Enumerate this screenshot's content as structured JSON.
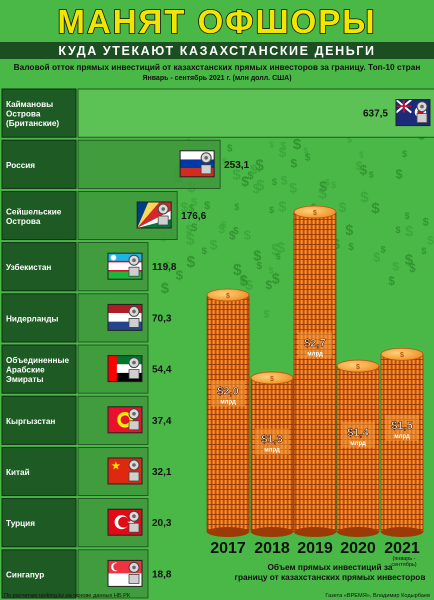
{
  "header": {
    "title": "МАНЯТ ОФШОРЫ",
    "subtitle": "КУДА УТЕКАЮТ КАЗАХСТАНСКИЕ ДЕНЬГИ",
    "chart_title": "Валовой отток прямых инвестиций от казахстанских прямых инвесторов за границу. Топ-10 стран",
    "period": "Январь - сентябрь 2021 г. (млн долл. США)"
  },
  "footer": {
    "source": "По расчетам ranking.kz на основе данных НБ РК",
    "credit": "Газета «ВРЕМЯ», Владимир Кодырбаев"
  },
  "colors": {
    "background": "#4ab847",
    "title_yellow": "#f2e500",
    "coin_orange": "#f07d1c",
    "row_bg": "#1e5a24"
  },
  "chart_data": [
    {
      "type": "bar",
      "orientation": "horizontal",
      "title": "Валовой отток прямых инвестиций от казахстанских прямых инвесторов за границу. Топ-10 стран",
      "subtitle": "Январь - сентябрь 2021 г. (млн долл. США)",
      "rows": [
        {
          "label_lines": [
            "Каймановы",
            "Острова",
            "(Британские)"
          ],
          "value": 637.5,
          "value_label": "637,5",
          "flag": "cayman-flag"
        },
        {
          "label_lines": [
            "Россия"
          ],
          "value": 253.1,
          "value_label": "253,1",
          "flag": "russia-flag"
        },
        {
          "label_lines": [
            "Сейшельские",
            "Острова"
          ],
          "value": 176.6,
          "value_label": "176,6",
          "flag": "seychelles-flag"
        },
        {
          "label_lines": [
            "Узбекистан"
          ],
          "value": 119.8,
          "value_label": "119,8",
          "flag": "uzbekistan-flag"
        },
        {
          "label_lines": [
            "Нидерланды"
          ],
          "value": 70.3,
          "value_label": "70,3",
          "flag": "netherlands-flag"
        },
        {
          "label_lines": [
            "Объединенные",
            "Арабские",
            "Эмираты"
          ],
          "value": 54.4,
          "value_label": "54,4",
          "flag": "uae-flag"
        },
        {
          "label_lines": [
            "Кыргызстан"
          ],
          "value": 37.4,
          "value_label": "37,4",
          "flag": "kyrgyzstan-flag"
        },
        {
          "label_lines": [
            "Китай"
          ],
          "value": 32.1,
          "value_label": "32,1",
          "flag": "china-flag"
        },
        {
          "label_lines": [
            "Турция"
          ],
          "value": 20.3,
          "value_label": "20,3",
          "flag": "turkey-flag"
        },
        {
          "label_lines": [
            "Сингапур"
          ],
          "value": 18.8,
          "value_label": "18,8",
          "flag": "singapore-flag"
        }
      ]
    },
    {
      "type": "bar",
      "title": "Объем прямых инвестиций за границу от казахстанских прямых инвесторов",
      "categories": [
        "2017",
        "2018",
        "2019",
        "2020",
        "2021"
      ],
      "values": [
        2.0,
        1.3,
        2.7,
        1.4,
        1.5
      ],
      "value_labels": [
        "$2,0",
        "$1,3",
        "$2,7",
        "$1,4",
        "$1,5"
      ],
      "unit": "млрд",
      "note_2021": [
        "(январь -",
        "сентябрь)"
      ]
    }
  ]
}
